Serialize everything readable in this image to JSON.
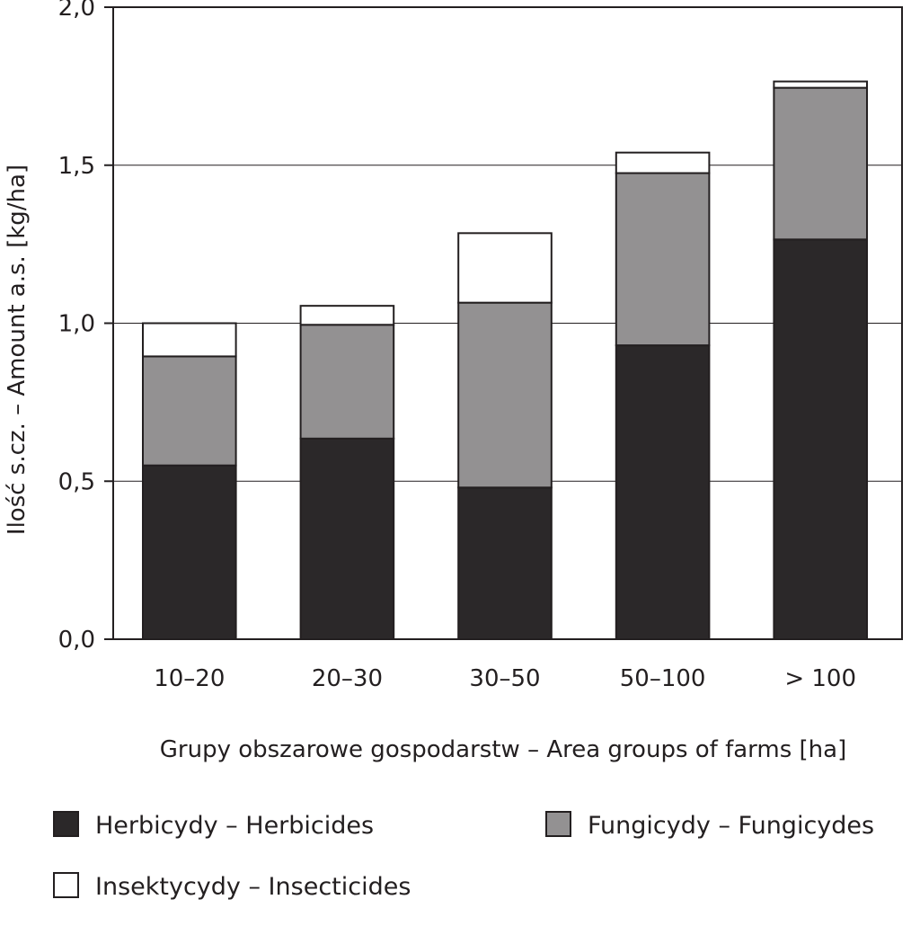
{
  "chart_data": {
    "type": "bar",
    "stacked": true,
    "categories": [
      "10–20",
      "20–30",
      "30–50",
      "50–100",
      "> 100"
    ],
    "series": [
      {
        "name": "Herbicydy – Herbicides",
        "color": "#2b2829",
        "values": [
          0.55,
          0.635,
          0.48,
          0.93,
          1.265
        ]
      },
      {
        "name": "Fungicydy – Fungicydes",
        "color": "#939192",
        "values": [
          0.345,
          0.36,
          0.585,
          0.545,
          0.48
        ]
      },
      {
        "name": "Insektycydy – Insecticides",
        "color": "#ffffff",
        "values": [
          0.105,
          0.06,
          0.22,
          0.065,
          0.02
        ]
      }
    ],
    "xlabel": "Grupy obszarowe gospodarstw – Area groups of farms [ha]",
    "ylabel": "Ilość s.cz. – Amount a.s. [kg/ha]",
    "ylim": [
      0,
      2.0
    ],
    "yticks": [
      0.0,
      0.5,
      1.0,
      1.5,
      2.0
    ],
    "ytick_labels": [
      "0,0",
      "0,5",
      "1,0",
      "1,5",
      "2,0"
    ],
    "grid": true,
    "legend_placement": "bottom"
  }
}
